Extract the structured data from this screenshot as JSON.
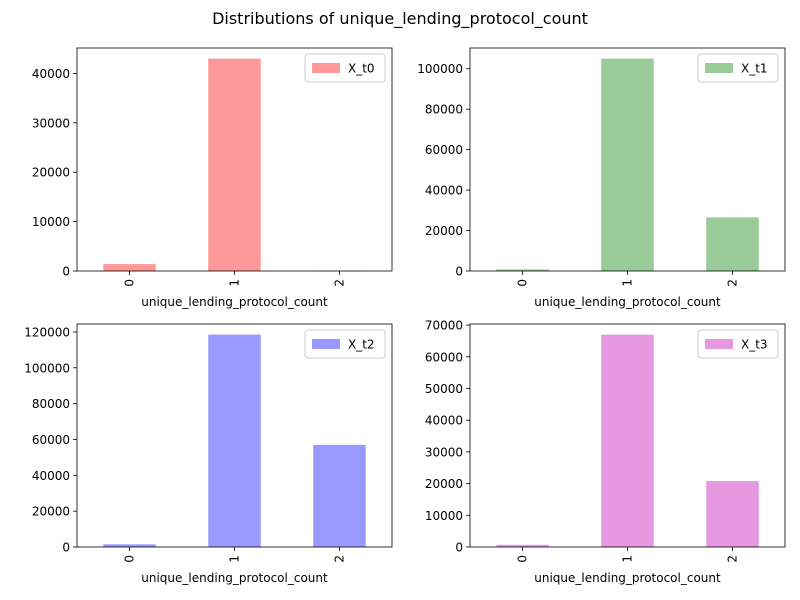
{
  "suptitle": "Distributions of unique_lending_protocol_count",
  "chart_data": [
    {
      "type": "bar",
      "categories": [
        "0",
        "1",
        "2"
      ],
      "series": [
        {
          "name": "X_t0",
          "values": [
            1400,
            43000,
            50
          ]
        }
      ],
      "color": "#ff9999",
      "xlabel": "unique_lending_protocol_count",
      "ylabel": "",
      "ylim": [
        0,
        45150
      ],
      "yticks": [
        0,
        10000,
        20000,
        30000,
        40000
      ],
      "legend": "upper right",
      "grid": false
    },
    {
      "type": "bar",
      "categories": [
        "0",
        "1",
        "2"
      ],
      "series": [
        {
          "name": "X_t1",
          "values": [
            800,
            105000,
            26500
          ]
        }
      ],
      "color": "#99cc99",
      "xlabel": "unique_lending_protocol_count",
      "ylabel": "",
      "ylim": [
        0,
        110250
      ],
      "yticks": [
        0,
        20000,
        40000,
        60000,
        80000,
        100000
      ],
      "legend": "upper right",
      "grid": false
    },
    {
      "type": "bar",
      "categories": [
        "0",
        "1",
        "2"
      ],
      "series": [
        {
          "name": "X_t2",
          "values": [
            1500,
            118500,
            57000
          ]
        }
      ],
      "color": "#9999ff",
      "xlabel": "unique_lending_protocol_count",
      "ylabel": "",
      "ylim": [
        0,
        124425
      ],
      "yticks": [
        0,
        20000,
        40000,
        60000,
        80000,
        100000,
        120000
      ],
      "legend": "upper right",
      "grid": false
    },
    {
      "type": "bar",
      "categories": [
        "0",
        "1",
        "2"
      ],
      "series": [
        {
          "name": "X_t3",
          "values": [
            700,
            67000,
            20800
          ]
        }
      ],
      "color": "#e699e0",
      "xlabel": "unique_lending_protocol_count",
      "ylabel": "",
      "ylim": [
        0,
        70350
      ],
      "yticks": [
        0,
        10000,
        20000,
        30000,
        40000,
        50000,
        60000,
        70000
      ],
      "legend": "upper right",
      "grid": false
    }
  ]
}
